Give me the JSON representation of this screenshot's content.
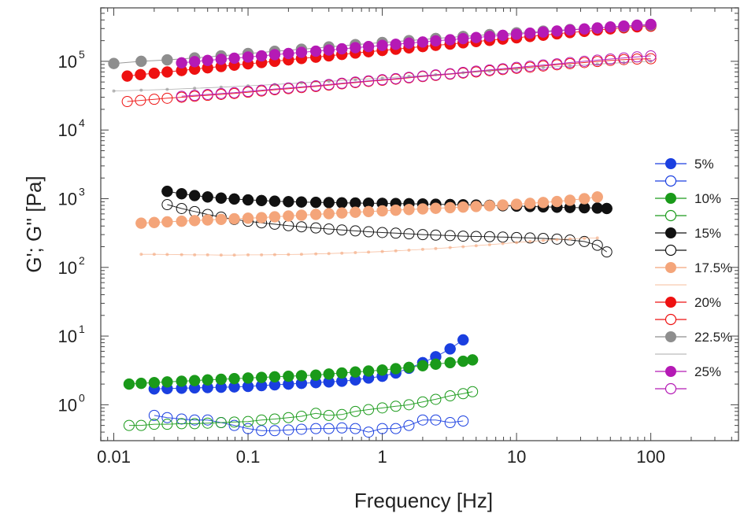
{
  "chart_data": {
    "type": "scatter",
    "xscale": "log",
    "yscale": "log",
    "xlabel": "Frequency [Hz]",
    "ylabel": "G'; G'' [Pa]",
    "xlim": [
      0.008,
      450
    ],
    "ylim": [
      0.3,
      600000
    ],
    "x_ticks": [
      {
        "value": 0.01,
        "label": "0.01"
      },
      {
        "value": 0.1,
        "label": "0.1"
      },
      {
        "value": 1,
        "label": "1"
      },
      {
        "value": 10,
        "label": "10"
      },
      {
        "value": 100,
        "label": "100"
      }
    ],
    "y_ticks": [
      {
        "value": 1,
        "base": "10",
        "exp": "0"
      },
      {
        "value": 10,
        "base": "10",
        "exp": "1"
      },
      {
        "value": 100,
        "base": "10",
        "exp": "2"
      },
      {
        "value": 1000,
        "base": "10",
        "exp": "3"
      },
      {
        "value": 10000,
        "base": "10",
        "exp": "4"
      },
      {
        "value": 100000,
        "base": "10",
        "exp": "5"
      }
    ],
    "legend_position": "right",
    "legend": [
      {
        "label": "5%",
        "color": "#1a3fe0"
      },
      {
        "label": "10%",
        "color": "#1a9a1a"
      },
      {
        "label": "15%",
        "color": "#111111"
      },
      {
        "label": "17.5%",
        "color": "#f4a57a"
      },
      {
        "label": "20%",
        "color": "#ee1111"
      },
      {
        "label": "22.5%",
        "color": "#8e8e8e"
      },
      {
        "label": "25%",
        "color": "#b51ab5"
      }
    ],
    "series": [
      {
        "name": "5% G'",
        "modulus": "G'",
        "color": "#1a3fe0",
        "marker": "filled",
        "x": [
          0.02,
          0.025,
          0.032,
          0.04,
          0.05,
          0.063,
          0.079,
          0.1,
          0.126,
          0.158,
          0.2,
          0.25,
          0.32,
          0.4,
          0.5,
          0.63,
          0.79,
          1.0,
          1.26,
          1.58,
          2.0,
          2.5,
          3.2,
          4.0
        ],
        "y": [
          1.7,
          1.72,
          1.74,
          1.76,
          1.78,
          1.8,
          1.82,
          1.85,
          1.9,
          1.95,
          2.0,
          2.05,
          2.1,
          2.15,
          2.2,
          2.3,
          2.45,
          2.6,
          2.9,
          3.4,
          4.1,
          5.0,
          6.5,
          8.8
        ]
      },
      {
        "name": "5% G''",
        "modulus": "G''",
        "color": "#1a3fe0",
        "marker": "open",
        "x": [
          0.02,
          0.025,
          0.032,
          0.04,
          0.05,
          0.063,
          0.079,
          0.1,
          0.126,
          0.158,
          0.2,
          0.25,
          0.32,
          0.4,
          0.5,
          0.63,
          0.79,
          1.0,
          1.26,
          1.58,
          2.0,
          2.5,
          3.2,
          4.0
        ],
        "y": [
          0.7,
          0.65,
          0.62,
          0.6,
          0.6,
          0.55,
          0.5,
          0.45,
          0.42,
          0.42,
          0.43,
          0.44,
          0.45,
          0.45,
          0.46,
          0.45,
          0.4,
          0.45,
          0.45,
          0.5,
          0.6,
          0.6,
          0.55,
          0.58
        ]
      },
      {
        "name": "10% G'",
        "modulus": "G'",
        "color": "#1a9a1a",
        "marker": "filled",
        "x": [
          0.013,
          0.016,
          0.02,
          0.025,
          0.032,
          0.04,
          0.05,
          0.063,
          0.079,
          0.1,
          0.126,
          0.158,
          0.2,
          0.25,
          0.32,
          0.4,
          0.5,
          0.63,
          0.79,
          1.0,
          1.26,
          1.58,
          2.0,
          2.5,
          3.2,
          4.0,
          4.7
        ],
        "y": [
          2.0,
          2.05,
          2.1,
          2.15,
          2.2,
          2.25,
          2.3,
          2.35,
          2.4,
          2.45,
          2.5,
          2.55,
          2.6,
          2.65,
          2.7,
          2.8,
          2.9,
          3.0,
          3.1,
          3.2,
          3.35,
          3.5,
          3.7,
          3.9,
          4.1,
          4.3,
          4.5
        ]
      },
      {
        "name": "10% G''",
        "modulus": "G''",
        "color": "#1a9a1a",
        "marker": "open",
        "x": [
          0.013,
          0.016,
          0.02,
          0.025,
          0.032,
          0.04,
          0.05,
          0.063,
          0.079,
          0.1,
          0.126,
          0.158,
          0.2,
          0.25,
          0.32,
          0.4,
          0.5,
          0.63,
          0.79,
          1.0,
          1.26,
          1.58,
          2.0,
          2.5,
          3.2,
          4.0,
          4.7
        ],
        "y": [
          0.5,
          0.5,
          0.52,
          0.52,
          0.53,
          0.53,
          0.54,
          0.55,
          0.56,
          0.57,
          0.6,
          0.62,
          0.65,
          0.68,
          0.75,
          0.7,
          0.72,
          0.8,
          0.85,
          0.9,
          0.95,
          1.0,
          1.1,
          1.2,
          1.35,
          1.45,
          1.55
        ]
      },
      {
        "name": "15% G'",
        "modulus": "G'",
        "color": "#111111",
        "marker": "filled",
        "x": [
          0.025,
          0.032,
          0.04,
          0.05,
          0.063,
          0.079,
          0.1,
          0.126,
          0.158,
          0.2,
          0.25,
          0.32,
          0.4,
          0.5,
          0.63,
          0.79,
          1.0,
          1.26,
          1.58,
          2.0,
          2.5,
          3.2,
          4.0,
          5.0,
          6.3,
          7.9,
          10,
          12.6,
          15.8,
          20,
          25,
          32,
          40,
          47
        ],
        "y": [
          1280,
          1180,
          1110,
          1060,
          1020,
          990,
          960,
          940,
          920,
          905,
          895,
          885,
          878,
          870,
          865,
          860,
          855,
          850,
          845,
          838,
          830,
          822,
          815,
          808,
          800,
          790,
          780,
          770,
          760,
          752,
          745,
          738,
          730,
          720
        ]
      },
      {
        "name": "15% G''",
        "modulus": "G''",
        "color": "#111111",
        "marker": "open",
        "x": [
          0.025,
          0.032,
          0.04,
          0.05,
          0.063,
          0.079,
          0.1,
          0.126,
          0.158,
          0.2,
          0.25,
          0.32,
          0.4,
          0.5,
          0.63,
          0.79,
          1.0,
          1.26,
          1.58,
          2.0,
          2.5,
          3.2,
          4.0,
          5.0,
          6.3,
          7.9,
          10,
          12.6,
          15.8,
          20,
          25,
          32,
          40,
          47
        ],
        "y": [
          820,
          720,
          650,
          590,
          540,
          500,
          470,
          445,
          425,
          405,
          390,
          375,
          362,
          350,
          340,
          330,
          322,
          315,
          308,
          300,
          295,
          290,
          285,
          282,
          280,
          276,
          272,
          268,
          264,
          258,
          250,
          238,
          210,
          168
        ]
      },
      {
        "name": "17.5% G'",
        "modulus": "G'",
        "color": "#f4a57a",
        "marker": "filled",
        "x": [
          0.016,
          0.02,
          0.025,
          0.032,
          0.04,
          0.05,
          0.063,
          0.079,
          0.1,
          0.126,
          0.158,
          0.2,
          0.25,
          0.32,
          0.4,
          0.5,
          0.63,
          0.79,
          1.0,
          1.26,
          1.58,
          2.0,
          2.5,
          3.2,
          4.0,
          5.0,
          6.3,
          7.9,
          10,
          12.6,
          15.8,
          20,
          25,
          32,
          40
        ],
        "y": [
          440,
          450,
          460,
          470,
          480,
          490,
          500,
          510,
          520,
          530,
          545,
          560,
          575,
          590,
          605,
          620,
          635,
          650,
          665,
          680,
          695,
          710,
          725,
          740,
          755,
          770,
          790,
          810,
          830,
          855,
          880,
          910,
          950,
          1000,
          1060
        ]
      },
      {
        "name": "17.5% G''",
        "modulus": "G''",
        "color": "#f4a57a",
        "marker": "dots",
        "x": [
          0.016,
          0.02,
          0.025,
          0.032,
          0.04,
          0.05,
          0.063,
          0.079,
          0.1,
          0.126,
          0.158,
          0.2,
          0.25,
          0.32,
          0.4,
          0.5,
          0.63,
          0.79,
          1.0,
          1.26,
          1.58,
          2.0,
          2.5,
          3.2,
          4.0,
          5.0,
          6.3,
          7.9,
          10,
          12.6,
          15.8,
          20,
          25,
          32,
          40
        ],
        "y": [
          155,
          155,
          154,
          153,
          152,
          152,
          151,
          151,
          152,
          152,
          153,
          154,
          155,
          157,
          159,
          161,
          164,
          167,
          170,
          174,
          178,
          183,
          188,
          194,
          200,
          207,
          214,
          222,
          230,
          238,
          246,
          254,
          260,
          265,
          268
        ]
      },
      {
        "name": "20% G'",
        "modulus": "G'",
        "color": "#ee1111",
        "marker": "filled",
        "x": [
          0.0126,
          0.0158,
          0.02,
          0.025,
          0.032,
          0.04,
          0.05,
          0.063,
          0.079,
          0.1,
          0.126,
          0.158,
          0.2,
          0.25,
          0.32,
          0.4,
          0.5,
          0.63,
          0.79,
          1.0,
          1.26,
          1.58,
          2.0,
          2.5,
          3.2,
          4.0,
          5.0,
          6.3,
          7.9,
          10,
          12.6,
          15.8,
          20,
          25,
          32,
          40,
          50,
          63,
          79,
          100
        ],
        "y": [
          61000,
          64000,
          67000,
          70000,
          73500,
          77000,
          80500,
          84000,
          88000,
          92000,
          96000,
          100000,
          105000,
          110000,
          115000,
          120000,
          126000,
          132000,
          138000,
          144000,
          150000,
          157000,
          164000,
          171000,
          178000,
          186000,
          194000,
          202000,
          211000,
          220000,
          230000,
          240000,
          251000,
          262000,
          273000,
          285000,
          297000,
          308000,
          318000,
          325000
        ]
      },
      {
        "name": "20% G''",
        "modulus": "G''",
        "color": "#ee1111",
        "marker": "open",
        "x": [
          0.0126,
          0.0158,
          0.02,
          0.025,
          0.032,
          0.04,
          0.05,
          0.063,
          0.079,
          0.1,
          0.126,
          0.158,
          0.2,
          0.25,
          0.32,
          0.4,
          0.5,
          0.63,
          0.79,
          1.0,
          1.26,
          1.58,
          2.0,
          2.5,
          3.2,
          4.0,
          5.0,
          6.3,
          7.9,
          10,
          12.6,
          15.8,
          20,
          25,
          32,
          40,
          50,
          63,
          79,
          100
        ],
        "y": [
          26000,
          27000,
          28000,
          29000,
          30000,
          31000,
          32000,
          33000,
          34000,
          35500,
          37000,
          38500,
          40000,
          41500,
          43000,
          45000,
          47000,
          49000,
          51000,
          53000,
          55000,
          57500,
          60000,
          62500,
          65000,
          67500,
          70000,
          73000,
          76000,
          79000,
          82000,
          85500,
          89000,
          92500,
          96000,
          99500,
          103000,
          106000,
          108000,
          109000
        ]
      },
      {
        "name": "22.5% G'",
        "modulus": "G'",
        "color": "#8e8e8e",
        "marker": "filled",
        "x": [
          0.01,
          0.016,
          0.025,
          0.04,
          0.063,
          0.1,
          0.158,
          0.25,
          0.4,
          0.63,
          1.0,
          1.58,
          2.5,
          4.0,
          6.3,
          10,
          15.8,
          25,
          40,
          63,
          100
        ],
        "y": [
          93000,
          100000,
          105000,
          112000,
          120000,
          130000,
          140000,
          150000,
          162000,
          175000,
          188000,
          200000,
          215000,
          230000,
          245000,
          260000,
          275000,
          290000,
          305000,
          320000,
          335000
        ]
      },
      {
        "name": "22.5% G''",
        "modulus": "G''",
        "color": "#8e8e8e",
        "marker": "dots",
        "x": [
          0.01,
          0.016,
          0.025,
          0.04,
          0.063,
          0.1,
          0.158,
          0.25,
          0.4,
          0.63,
          1.0,
          1.58,
          2.5,
          4.0,
          6.3,
          10,
          15.8,
          25,
          40,
          63,
          100
        ],
        "y": [
          37000,
          38000,
          39000,
          40500,
          42000,
          44000,
          46000,
          48500,
          51000,
          54000,
          57000,
          60500,
          64000,
          68000,
          72000,
          76500,
          81000,
          86000,
          91000,
          96000,
          100000
        ]
      },
      {
        "name": "25% G'",
        "modulus": "G'",
        "color": "#b51ab5",
        "marker": "filled",
        "x": [
          0.032,
          0.04,
          0.05,
          0.063,
          0.079,
          0.1,
          0.126,
          0.158,
          0.2,
          0.25,
          0.32,
          0.4,
          0.5,
          0.63,
          0.79,
          1.0,
          1.26,
          1.58,
          2.0,
          2.5,
          3.2,
          4.0,
          5.0,
          6.3,
          7.9,
          10,
          12.6,
          15.8,
          20,
          25,
          32,
          40,
          50,
          63,
          79,
          100
        ],
        "y": [
          95000,
          99000,
          103000,
          107000,
          111000,
          115500,
          120000,
          125000,
          130000,
          135000,
          140500,
          146000,
          152000,
          158000,
          164000,
          170500,
          177000,
          184000,
          191000,
          198500,
          206000,
          214000,
          222000,
          230500,
          239000,
          248000,
          257000,
          266500,
          276000,
          286000,
          296000,
          306000,
          316000,
          326000,
          336000,
          345000
        ]
      },
      {
        "name": "25% G''",
        "modulus": "G''",
        "color": "#b51ab5",
        "marker": "open",
        "x": [
          0.032,
          0.04,
          0.05,
          0.063,
          0.079,
          0.1,
          0.126,
          0.158,
          0.2,
          0.25,
          0.32,
          0.4,
          0.5,
          0.63,
          0.79,
          1.0,
          1.26,
          1.58,
          2.0,
          2.5,
          3.2,
          4.0,
          5.0,
          6.3,
          7.9,
          10,
          12.6,
          15.8,
          20,
          25,
          32,
          40,
          50,
          63,
          79,
          100
        ],
        "y": [
          31000,
          32000,
          33000,
          34000,
          35000,
          36500,
          38000,
          39500,
          41000,
          42500,
          44000,
          46000,
          48000,
          50000,
          52000,
          54000,
          56000,
          58500,
          61000,
          63500,
          66000,
          69000,
          72000,
          75000,
          78000,
          81500,
          85000,
          88500,
          92000,
          96000,
          100000,
          104000,
          108000,
          112000,
          116000,
          120000
        ]
      }
    ]
  }
}
